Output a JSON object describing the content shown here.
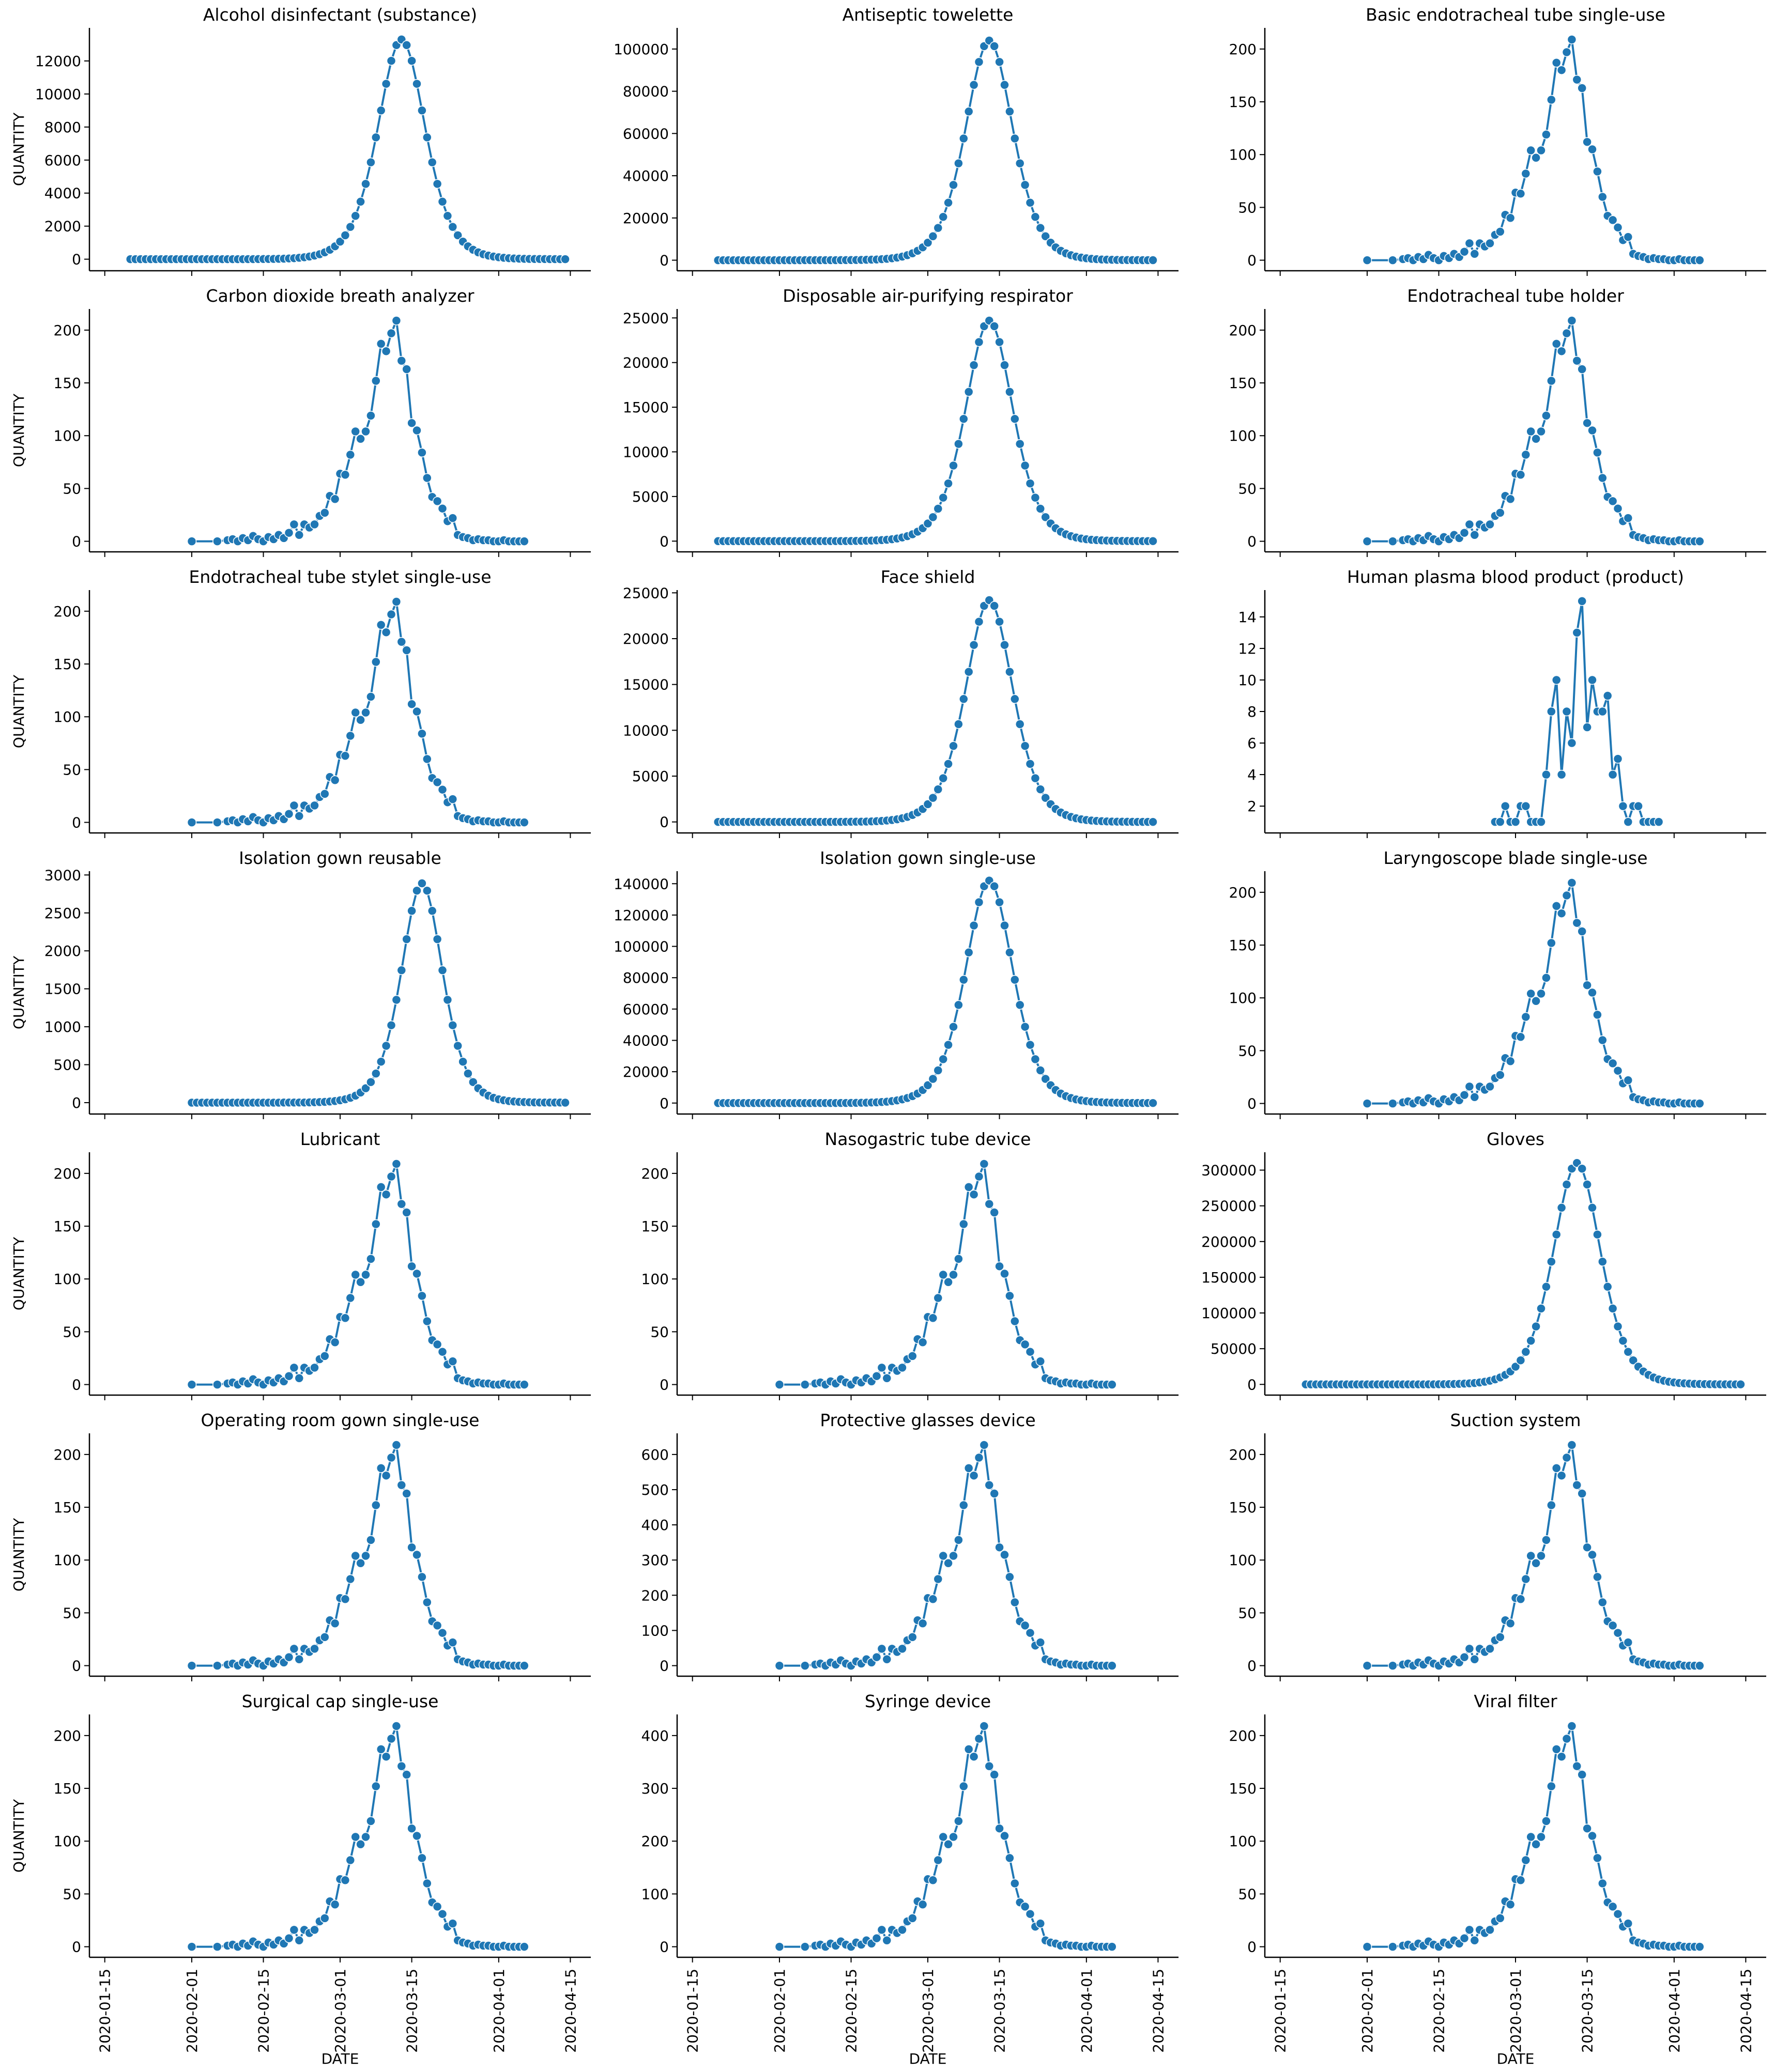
{
  "figure": {
    "shared_xlabel": "DATE",
    "shared_ylabel": "QUANTITY",
    "line_color": "#1f77b4",
    "x_ticks": [
      "2020-01-15",
      "2020-02-01",
      "2020-02-15",
      "2020-03-01",
      "2020-03-15",
      "2020-04-01",
      "2020-04-15"
    ]
  },
  "chart_data": [
    {
      "type": "line",
      "title": "Alcohol disinfectant (substance)",
      "x_start": "2020-01-20",
      "x_end": "2020-04-14",
      "peak_date": "2020-03-13",
      "peak_value": 13300,
      "y_ticks": [
        0,
        2000,
        4000,
        6000,
        8000,
        10000,
        12000
      ],
      "ylim": [
        -700,
        14000
      ],
      "xlabel": "",
      "ylabel": "QUANTITY"
    },
    {
      "type": "line",
      "title": "Antiseptic towelette",
      "x_start": "2020-01-20",
      "x_end": "2020-04-14",
      "peak_date": "2020-03-13",
      "peak_value": 104000,
      "y_ticks": [
        0,
        20000,
        40000,
        60000,
        80000,
        100000
      ],
      "ylim": [
        -5000,
        110000
      ],
      "xlabel": "",
      "ylabel": ""
    },
    {
      "type": "line",
      "title": "Basic endotracheal tube  single-use",
      "x_start": "2020-02-01",
      "x_end": "2020-04-06",
      "peak_date": "2020-03-15",
      "peak_value": 209,
      "y_ticks": [
        0,
        50,
        100,
        150,
        200
      ],
      "ylim": [
        -10,
        220
      ],
      "xlabel": "",
      "ylabel": ""
    },
    {
      "type": "line",
      "title": "Carbon dioxide breath analyzer",
      "x_start": "2020-02-01",
      "x_end": "2020-04-06",
      "peak_date": "2020-03-15",
      "peak_value": 209,
      "y_ticks": [
        0,
        50,
        100,
        150,
        200
      ],
      "ylim": [
        -10,
        220
      ],
      "xlabel": "",
      "ylabel": "QUANTITY"
    },
    {
      "type": "line",
      "title": "Disposable air-purifying respirator",
      "x_start": "2020-01-20",
      "x_end": "2020-04-14",
      "peak_date": "2020-03-13",
      "peak_value": 24700,
      "y_ticks": [
        0,
        5000,
        10000,
        15000,
        20000,
        25000
      ],
      "ylim": [
        -1200,
        26000
      ],
      "xlabel": "",
      "ylabel": ""
    },
    {
      "type": "line",
      "title": "Endotracheal tube holder",
      "x_start": "2020-02-01",
      "x_end": "2020-04-06",
      "peak_date": "2020-03-15",
      "peak_value": 209,
      "y_ticks": [
        0,
        50,
        100,
        150,
        200
      ],
      "ylim": [
        -10,
        220
      ],
      "xlabel": "",
      "ylabel": ""
    },
    {
      "type": "line",
      "title": "Endotracheal tube stylet  single-use",
      "x_start": "2020-02-01",
      "x_end": "2020-04-06",
      "peak_date": "2020-03-15",
      "peak_value": 209,
      "y_ticks": [
        0,
        50,
        100,
        150,
        200
      ],
      "ylim": [
        -10,
        220
      ],
      "xlabel": "",
      "ylabel": "QUANTITY"
    },
    {
      "type": "line",
      "title": "Face shield",
      "x_start": "2020-01-20",
      "x_end": "2020-04-14",
      "peak_date": "2020-03-13",
      "peak_value": 24200,
      "y_ticks": [
        0,
        5000,
        10000,
        15000,
        20000,
        25000
      ],
      "ylim": [
        -1200,
        25300
      ],
      "xlabel": "",
      "ylabel": ""
    },
    {
      "type": "line",
      "title": "Human plasma  blood product (product)",
      "x": [
        "2020-02-26",
        "2020-02-27",
        "2020-02-28",
        "2020-02-29",
        "2020-03-01",
        "2020-03-02",
        "2020-03-03",
        "2020-03-04",
        "2020-03-05",
        "2020-03-06",
        "2020-03-07",
        "2020-03-08",
        "2020-03-09",
        "2020-03-10",
        "2020-03-11",
        "2020-03-12",
        "2020-03-13",
        "2020-03-14",
        "2020-03-15",
        "2020-03-16",
        "2020-03-17",
        "2020-03-18",
        "2020-03-19",
        "2020-03-20",
        "2020-03-21",
        "2020-03-22",
        "2020-03-23",
        "2020-03-24",
        "2020-03-25",
        "2020-03-26",
        "2020-03-27",
        "2020-03-28",
        "2020-03-29"
      ],
      "values": [
        1,
        1,
        2,
        1,
        1,
        2,
        2,
        1,
        1,
        1,
        4,
        8,
        10,
        4,
        8,
        6,
        13,
        15,
        7,
        10,
        8,
        8,
        9,
        4,
        5,
        2,
        1,
        2,
        2,
        1,
        1,
        1,
        1
      ],
      "y_ticks": [
        2,
        4,
        6,
        8,
        10,
        12,
        14
      ],
      "ylim": [
        0.3,
        15.7
      ],
      "xlabel": "",
      "ylabel": ""
    },
    {
      "type": "line",
      "title": "Isolation gown  reusable",
      "x_start": "2020-02-01",
      "x_end": "2020-04-14",
      "peak_date": "2020-03-17",
      "peak_value": 2890,
      "y_ticks": [
        0,
        500,
        1000,
        1500,
        2000,
        2500,
        3000
      ],
      "ylim": [
        -150,
        3050
      ],
      "xlabel": "",
      "ylabel": "QUANTITY"
    },
    {
      "type": "line",
      "title": "Isolation gown  single-use",
      "x_start": "2020-01-20",
      "x_end": "2020-04-14",
      "peak_date": "2020-03-13",
      "peak_value": 142000,
      "y_ticks": [
        0,
        20000,
        40000,
        60000,
        80000,
        100000,
        120000,
        140000
      ],
      "ylim": [
        -7000,
        148000
      ],
      "xlabel": "",
      "ylabel": ""
    },
    {
      "type": "line",
      "title": "Laryngoscope blade  single-use",
      "x_start": "2020-02-01",
      "x_end": "2020-04-06",
      "peak_date": "2020-03-15",
      "peak_value": 209,
      "y_ticks": [
        0,
        50,
        100,
        150,
        200
      ],
      "ylim": [
        -10,
        220
      ],
      "xlabel": "",
      "ylabel": ""
    },
    {
      "type": "line",
      "title": "Lubricant",
      "x_start": "2020-02-01",
      "x_end": "2020-04-06",
      "peak_date": "2020-03-15",
      "peak_value": 209,
      "y_ticks": [
        0,
        50,
        100,
        150,
        200
      ],
      "ylim": [
        -10,
        220
      ],
      "xlabel": "",
      "ylabel": "QUANTITY"
    },
    {
      "type": "line",
      "title": "Nasogastric tube  device",
      "x_start": "2020-02-01",
      "x_end": "2020-04-06",
      "peak_date": "2020-03-15",
      "peak_value": 209,
      "y_ticks": [
        0,
        50,
        100,
        150,
        200
      ],
      "ylim": [
        -10,
        220
      ],
      "xlabel": "",
      "ylabel": ""
    },
    {
      "type": "line",
      "title": "Gloves",
      "x_start": "2020-01-20",
      "x_end": "2020-04-14",
      "peak_date": "2020-03-13",
      "peak_value": 310000,
      "y_ticks": [
        0,
        50000,
        100000,
        150000,
        200000,
        250000,
        300000
      ],
      "ylim": [
        -15000,
        325000
      ],
      "xlabel": "",
      "ylabel": ""
    },
    {
      "type": "line",
      "title": "Operating room gown  single-use",
      "x_start": "2020-02-01",
      "x_end": "2020-04-06",
      "peak_date": "2020-03-15",
      "peak_value": 209,
      "y_ticks": [
        0,
        50,
        100,
        150,
        200
      ],
      "ylim": [
        -10,
        220
      ],
      "xlabel": "",
      "ylabel": "QUANTITY"
    },
    {
      "type": "line",
      "title": "Protective glasses  device",
      "x_start": "2020-02-01",
      "x_end": "2020-04-06",
      "peak_date": "2020-03-15",
      "peak_value": 627,
      "y_ticks": [
        0,
        100,
        200,
        300,
        400,
        500,
        600
      ],
      "ylim": [
        -30,
        660
      ],
      "xlabel": "",
      "ylabel": ""
    },
    {
      "type": "line",
      "title": "Suction system",
      "x_start": "2020-02-01",
      "x_end": "2020-04-06",
      "peak_date": "2020-03-15",
      "peak_value": 209,
      "y_ticks": [
        0,
        50,
        100,
        150,
        200
      ],
      "ylim": [
        -10,
        220
      ],
      "xlabel": "",
      "ylabel": ""
    },
    {
      "type": "line",
      "title": "Surgical cap  single-use",
      "x_start": "2020-02-01",
      "x_end": "2020-04-06",
      "peak_date": "2020-03-15",
      "peak_value": 209,
      "y_ticks": [
        0,
        50,
        100,
        150,
        200
      ],
      "ylim": [
        -10,
        220
      ],
      "xlabel": "DATE",
      "ylabel": "QUANTITY"
    },
    {
      "type": "line",
      "title": "Syringe  device",
      "x_start": "2020-02-01",
      "x_end": "2020-04-06",
      "peak_date": "2020-03-15",
      "peak_value": 418,
      "y_ticks": [
        0,
        100,
        200,
        300,
        400
      ],
      "ylim": [
        -20,
        440
      ],
      "xlabel": "DATE",
      "ylabel": ""
    },
    {
      "type": "line",
      "title": "Viral filter",
      "x_start": "2020-02-01",
      "x_end": "2020-04-06",
      "peak_date": "2020-03-15",
      "peak_value": 209,
      "y_ticks": [
        0,
        50,
        100,
        150,
        200
      ],
      "ylim": [
        -10,
        220
      ],
      "xlabel": "DATE",
      "ylabel": ""
    }
  ]
}
